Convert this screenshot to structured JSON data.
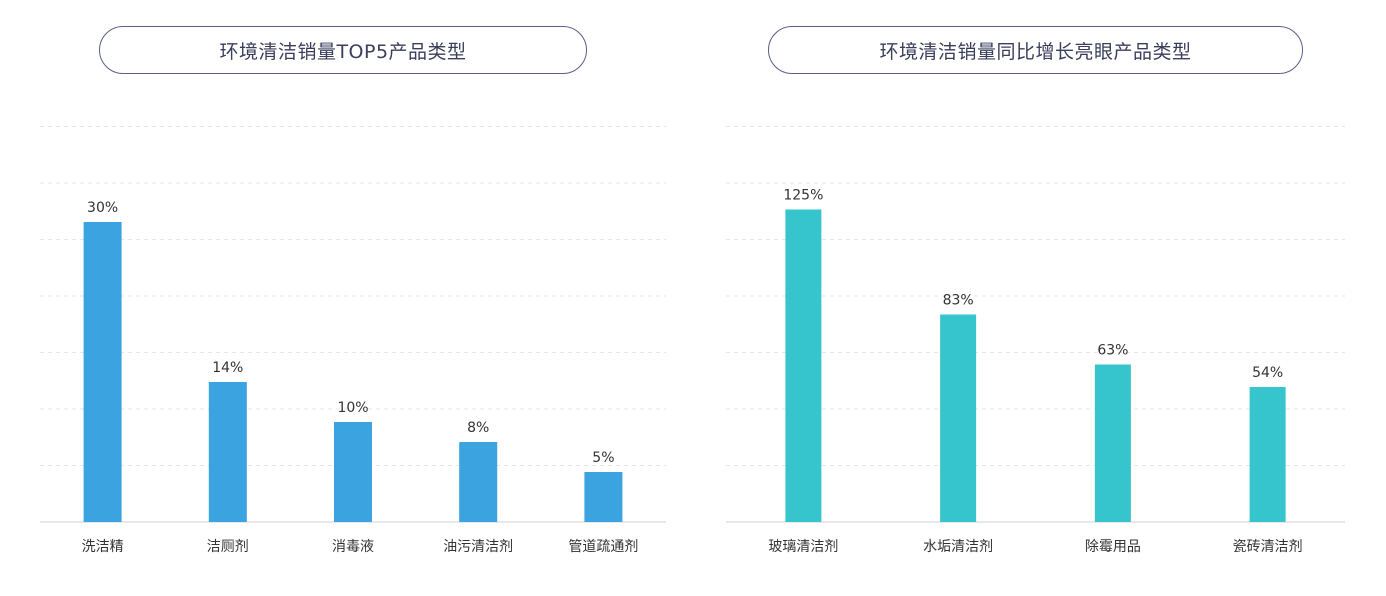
{
  "chart_data": [
    {
      "type": "bar",
      "title": "环境清洁销量TOP5产品类型",
      "categories": [
        "洗洁精",
        "洁厕剂",
        "消毒液",
        "油污清洁剂",
        "管道疏通剂"
      ],
      "values": [
        30,
        14,
        10,
        8,
        5
      ],
      "value_labels": [
        "30%",
        "14%",
        "10%",
        "8%",
        "5%"
      ],
      "ylim": [
        0,
        35
      ],
      "grid": true,
      "color": "#3aa3e0"
    },
    {
      "type": "bar",
      "title": "环境清洁销量同比增长亮眼产品类型",
      "categories": [
        "玻璃清洁剂",
        "水垢清洁剂",
        "除霉用品",
        "瓷砖清洁剂"
      ],
      "values": [
        125,
        83,
        63,
        54
      ],
      "value_labels": [
        "125%",
        "83%",
        "63%",
        "54%"
      ],
      "ylim": [
        0,
        140
      ],
      "grid": true,
      "color": "#36c5cc"
    }
  ]
}
